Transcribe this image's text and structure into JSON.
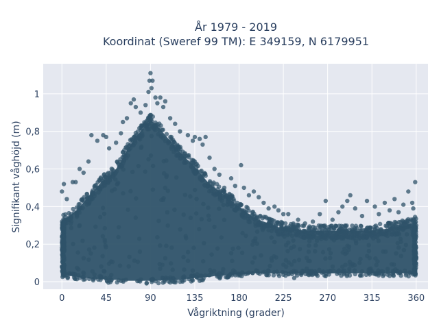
{
  "chart_data": {
    "type": "scatter",
    "title_line1": "År 1979 - 2019",
    "title_line2": "Koordinat (Sweref 99 TM): E 349159, N 6179951",
    "xlabel": "Vågriktning (grader)",
    "ylabel": "Signifikant våghöjd (m)",
    "xlim": [
      -19,
      372
    ],
    "ylim": [
      -0.04,
      1.16
    ],
    "xticks": [
      0,
      45,
      90,
      135,
      180,
      225,
      270,
      315,
      360
    ],
    "xtick_labels": [
      "0",
      "45",
      "90",
      "135",
      "180",
      "225",
      "270",
      "315",
      "360"
    ],
    "yticks": [
      0,
      0.2,
      0.4,
      0.6,
      0.8,
      1
    ],
    "ytick_labels": [
      "0",
      "0,2",
      "0,4",
      "0,6",
      "0,8",
      "1"
    ],
    "grid": true,
    "legend": "none",
    "marker_color": "#2f5369",
    "plot_bg": "#e5e8f0",
    "envelope": {
      "x": [
        0,
        5,
        10,
        15,
        20,
        25,
        30,
        35,
        40,
        45,
        50,
        55,
        60,
        65,
        70,
        75,
        80,
        85,
        90,
        95,
        100,
        105,
        110,
        115,
        120,
        125,
        130,
        135,
        140,
        145,
        150,
        155,
        160,
        165,
        170,
        175,
        180,
        185,
        190,
        195,
        200,
        205,
        210,
        215,
        220,
        225,
        230,
        235,
        240,
        245,
        250,
        255,
        260,
        265,
        270,
        275,
        280,
        285,
        290,
        295,
        300,
        305,
        310,
        315,
        320,
        325,
        330,
        335,
        340,
        345,
        350,
        355,
        360
      ],
      "y_upper": [
        0.32,
        0.34,
        0.36,
        0.38,
        0.41,
        0.44,
        0.47,
        0.5,
        0.53,
        0.55,
        0.57,
        0.6,
        0.64,
        0.69,
        0.73,
        0.77,
        0.8,
        0.83,
        0.86,
        0.84,
        0.81,
        0.78,
        0.75,
        0.72,
        0.69,
        0.66,
        0.64,
        0.61,
        0.58,
        0.55,
        0.52,
        0.5,
        0.48,
        0.46,
        0.44,
        0.42,
        0.4,
        0.38,
        0.36,
        0.34,
        0.33,
        0.32,
        0.31,
        0.3,
        0.29,
        0.29,
        0.28,
        0.28,
        0.28,
        0.27,
        0.27,
        0.27,
        0.27,
        0.27,
        0.27,
        0.27,
        0.27,
        0.27,
        0.27,
        0.27,
        0.27,
        0.27,
        0.27,
        0.27,
        0.28,
        0.28,
        0.28,
        0.29,
        0.29,
        0.3,
        0.3,
        0.31,
        0.32
      ],
      "y_lower": [
        0.04,
        0.035,
        0.03,
        0.025,
        0.02,
        0.02,
        0.015,
        0.015,
        0.015,
        0.01,
        0.01,
        0.01,
        0.01,
        0.005,
        0.005,
        0.005,
        0.005,
        0.005,
        0.005,
        0.005,
        0.005,
        0.01,
        0.01,
        0.01,
        0.01,
        0.015,
        0.015,
        0.02,
        0.02,
        0.025,
        0.025,
        0.03,
        0.03,
        0.035,
        0.035,
        0.04,
        0.04,
        0.04,
        0.04,
        0.045,
        0.045,
        0.045,
        0.045,
        0.045,
        0.045,
        0.045,
        0.045,
        0.045,
        0.045,
        0.045,
        0.045,
        0.045,
        0.045,
        0.045,
        0.045,
        0.045,
        0.045,
        0.045,
        0.045,
        0.045,
        0.045,
        0.045,
        0.045,
        0.045,
        0.045,
        0.045,
        0.045,
        0.045,
        0.045,
        0.045,
        0.045,
        0.04,
        0.04
      ]
    },
    "outliers": [
      {
        "x": 0,
        "y": 0.48
      },
      {
        "x": 2,
        "y": 0.52
      },
      {
        "x": 5,
        "y": 0.44
      },
      {
        "x": 11,
        "y": 0.53
      },
      {
        "x": 14,
        "y": 0.53
      },
      {
        "x": 18,
        "y": 0.6
      },
      {
        "x": 22,
        "y": 0.58
      },
      {
        "x": 27,
        "y": 0.64
      },
      {
        "x": 30,
        "y": 0.78
      },
      {
        "x": 36,
        "y": 0.75
      },
      {
        "x": 42,
        "y": 0.78
      },
      {
        "x": 45,
        "y": 0.77
      },
      {
        "x": 48,
        "y": 0.71
      },
      {
        "x": 55,
        "y": 0.74
      },
      {
        "x": 60,
        "y": 0.79
      },
      {
        "x": 62,
        "y": 0.85
      },
      {
        "x": 66,
        "y": 0.87
      },
      {
        "x": 70,
        "y": 0.95
      },
      {
        "x": 73,
        "y": 0.97
      },
      {
        "x": 75,
        "y": 0.93
      },
      {
        "x": 80,
        "y": 0.9
      },
      {
        "x": 85,
        "y": 0.94
      },
      {
        "x": 88,
        "y": 1.01
      },
      {
        "x": 89,
        "y": 1.07
      },
      {
        "x": 90,
        "y": 1.11
      },
      {
        "x": 91,
        "y": 1.03
      },
      {
        "x": 92,
        "y": 1.07
      },
      {
        "x": 95,
        "y": 0.98
      },
      {
        "x": 97,
        "y": 0.95
      },
      {
        "x": 100,
        "y": 0.98
      },
      {
        "x": 103,
        "y": 0.93
      },
      {
        "x": 105,
        "y": 0.96
      },
      {
        "x": 110,
        "y": 0.87
      },
      {
        "x": 115,
        "y": 0.84
      },
      {
        "x": 120,
        "y": 0.8
      },
      {
        "x": 128,
        "y": 0.78
      },
      {
        "x": 133,
        "y": 0.75
      },
      {
        "x": 135,
        "y": 0.77
      },
      {
        "x": 140,
        "y": 0.76
      },
      {
        "x": 143,
        "y": 0.73
      },
      {
        "x": 146,
        "y": 0.77
      },
      {
        "x": 150,
        "y": 0.66
      },
      {
        "x": 155,
        "y": 0.6
      },
      {
        "x": 160,
        "y": 0.57
      },
      {
        "x": 165,
        "y": 0.5
      },
      {
        "x": 172,
        "y": 0.55
      },
      {
        "x": 176,
        "y": 0.51
      },
      {
        "x": 182,
        "y": 0.62
      },
      {
        "x": 185,
        "y": 0.5
      },
      {
        "x": 190,
        "y": 0.46
      },
      {
        "x": 195,
        "y": 0.48
      },
      {
        "x": 200,
        "y": 0.45
      },
      {
        "x": 205,
        "y": 0.42
      },
      {
        "x": 210,
        "y": 0.39
      },
      {
        "x": 216,
        "y": 0.4
      },
      {
        "x": 220,
        "y": 0.38
      },
      {
        "x": 225,
        "y": 0.36
      },
      {
        "x": 230,
        "y": 0.36
      },
      {
        "x": 240,
        "y": 0.33
      },
      {
        "x": 247,
        "y": 0.31
      },
      {
        "x": 255,
        "y": 0.32
      },
      {
        "x": 262,
        "y": 0.36
      },
      {
        "x": 268,
        "y": 0.43
      },
      {
        "x": 275,
        "y": 0.33
      },
      {
        "x": 281,
        "y": 0.37
      },
      {
        "x": 285,
        "y": 0.4
      },
      {
        "x": 290,
        "y": 0.43
      },
      {
        "x": 293,
        "y": 0.46
      },
      {
        "x": 298,
        "y": 0.39
      },
      {
        "x": 305,
        "y": 0.35
      },
      {
        "x": 310,
        "y": 0.43
      },
      {
        "x": 318,
        "y": 0.4
      },
      {
        "x": 322,
        "y": 0.36
      },
      {
        "x": 328,
        "y": 0.42
      },
      {
        "x": 333,
        "y": 0.38
      },
      {
        "x": 338,
        "y": 0.44
      },
      {
        "x": 342,
        "y": 0.37
      },
      {
        "x": 347,
        "y": 0.41
      },
      {
        "x": 352,
        "y": 0.48
      },
      {
        "x": 356,
        "y": 0.42
      },
      {
        "x": 359,
        "y": 0.53
      },
      {
        "x": 357,
        "y": 0.39
      },
      {
        "x": 236,
        "y": 0.02
      },
      {
        "x": 268,
        "y": 0.03
      }
    ]
  }
}
